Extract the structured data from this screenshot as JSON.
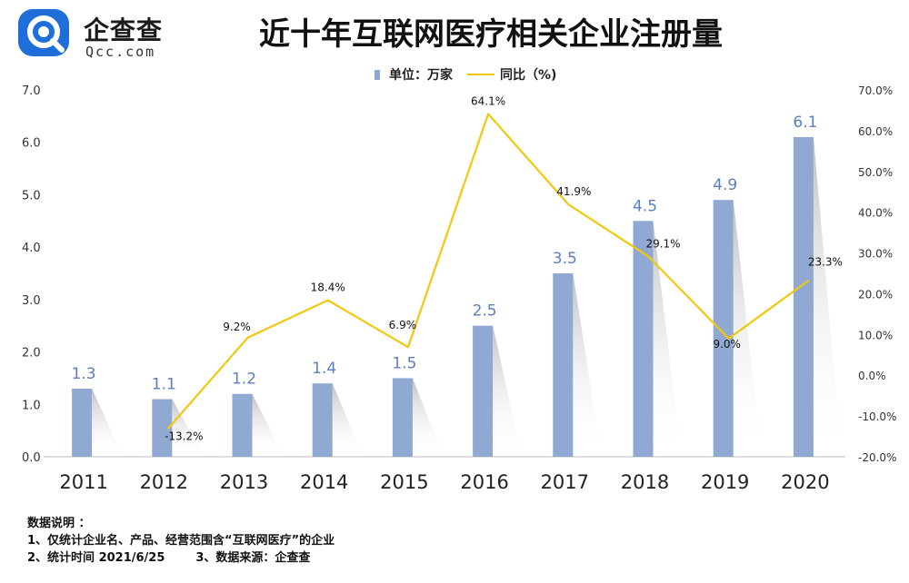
{
  "header": {
    "logo_text": "企查查",
    "logo_sub": "Qcc.com",
    "title": "近十年互联网医疗相关企业注册量"
  },
  "legend": {
    "bar_label": "单位：万家",
    "line_label": "同比（%)"
  },
  "notes": {
    "heading": "数据说明 ：",
    "line1": "1、仅统计企业名、产品、经营范围含“互联网医疗”的企业",
    "line2a": "2、统计时间 2021/6/25",
    "line2b": "3、数据来源：企查查"
  },
  "colors": {
    "bar": "#8fa9d3",
    "line": "#f2c80f",
    "bar_label": "#5b7fc0",
    "brand": "#1e6fd9"
  },
  "chart_data": {
    "type": "bar",
    "categories": [
      "2011",
      "2012",
      "2013",
      "2014",
      "2015",
      "2016",
      "2017",
      "2018",
      "2019",
      "2020"
    ],
    "series": [
      {
        "name": "单位：万家",
        "type": "bar",
        "axis": "left",
        "values": [
          1.3,
          1.1,
          1.2,
          1.4,
          1.5,
          2.5,
          3.5,
          4.5,
          4.9,
          6.1
        ],
        "labels": [
          "1.3",
          "1.1",
          "1.2",
          "1.4",
          "1.5",
          "2.5",
          "3.5",
          "4.5",
          "4.9",
          "6.1"
        ]
      },
      {
        "name": "同比（%)",
        "type": "line",
        "axis": "right",
        "x": [
          "2012",
          "2013",
          "2014",
          "2015",
          "2016",
          "2017",
          "2018",
          "2019",
          "2020"
        ],
        "values": [
          -13.2,
          9.2,
          18.4,
          6.9,
          64.1,
          41.9,
          29.1,
          9.0,
          23.3
        ],
        "labels": [
          "-13.2%",
          "9.2%",
          "18.4%",
          "6.9%",
          "64.1%",
          "41.9%",
          "29.1%",
          "9.0%",
          "23.3%"
        ]
      }
    ],
    "y_left": {
      "range": [
        0,
        7
      ],
      "ticks": [
        "0.0",
        "1.0",
        "2.0",
        "3.0",
        "4.0",
        "5.0",
        "6.0",
        "7.0"
      ]
    },
    "y_right": {
      "range": [
        -20,
        70
      ],
      "ticks": [
        "-20.0%",
        "-10.0%",
        "0.0%",
        "10.0%",
        "20.0%",
        "30.0%",
        "40.0%",
        "50.0%",
        "60.0%",
        "70.0%"
      ]
    },
    "grid": false,
    "legend_position": "top-center"
  }
}
